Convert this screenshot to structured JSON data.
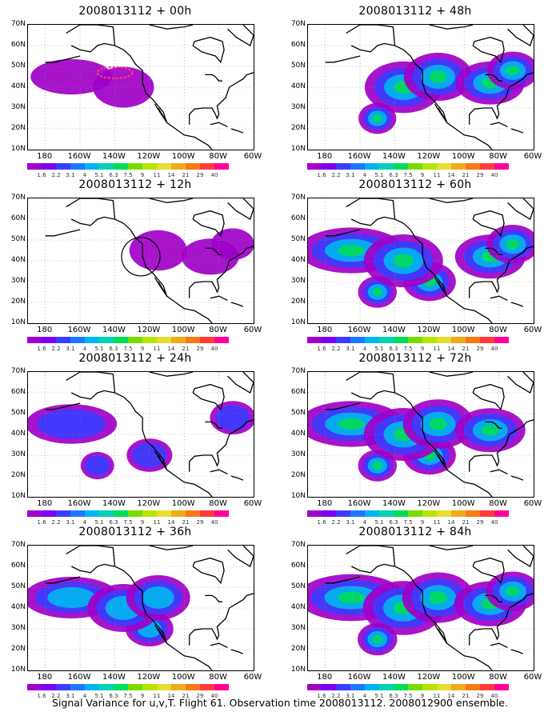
{
  "caption": "Signal Variance for u,v,T. Flight 61. Observation time 2008013112. 2008012900 ensemble.",
  "panels": [
    {
      "title": "2008013112 + 00h",
      "marker": "ellipse",
      "level": 0.3
    },
    {
      "title": "2008013112 + 48h",
      "marker": "none",
      "level": 0.75
    },
    {
      "title": "2008013112 + 12h",
      "marker": "circle",
      "level": 0.4
    },
    {
      "title": "2008013112 + 60h",
      "marker": "none",
      "level": 0.8
    },
    {
      "title": "2008013112 + 24h",
      "marker": "none",
      "level": 0.5
    },
    {
      "title": "2008013112 + 72h",
      "marker": "none",
      "level": 0.8
    },
    {
      "title": "2008013112 + 36h",
      "marker": "none",
      "level": 0.6
    },
    {
      "title": "2008013112 + 84h",
      "marker": "none",
      "level": 0.85
    }
  ],
  "y_ticks": [
    "70N",
    "60N",
    "50N",
    "40N",
    "30N",
    "20N",
    "10N"
  ],
  "x_ticks": [
    "180",
    "160W",
    "140W",
    "120W",
    "100W",
    "80W",
    "60W"
  ],
  "colorbar": {
    "labels": [
      "1.6",
      "2.2",
      "3.1",
      "4",
      "5.1",
      "6.3",
      "7.5",
      "9",
      "11",
      "14",
      "21",
      "29",
      "40"
    ],
    "colors": [
      "#a000c8",
      "#7d00f0",
      "#3c3cff",
      "#1e78ff",
      "#00b4f0",
      "#00d2b4",
      "#00dc5a",
      "#78dc00",
      "#b4e600",
      "#e6dc32",
      "#f0aa1e",
      "#fa7814",
      "#ff3c3c",
      "#ff0096"
    ]
  }
}
